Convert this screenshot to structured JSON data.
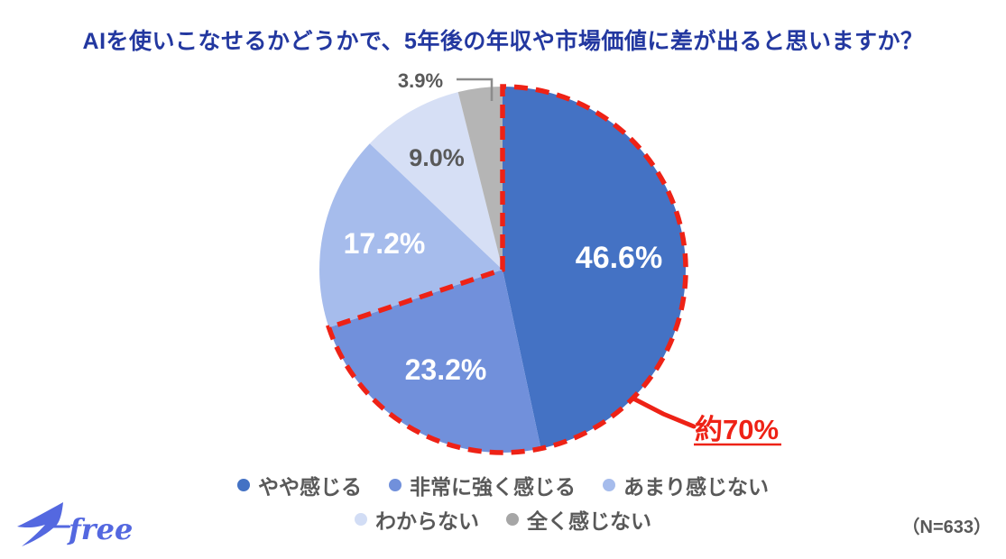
{
  "title": "AIを使いこなせるかどうかで、5年後の年収や市場価値に差が出ると思いますか？",
  "sample_size": "（N=633）",
  "logo": {
    "text": "freee",
    "icon": "swallow-icon"
  },
  "colors": {
    "title_blue": "#2338A0",
    "text_gray": "#595959",
    "annotation_red": "#EE2216",
    "leader_gray": "#8C8C8C",
    "logo_blue": "#5468E0",
    "label_white": "#FFFFFF"
  },
  "chart_data": {
    "type": "pie",
    "title": "AIを使いこなせるかどうかで、5年後の年収や市場価値に差が出ると思いますか？",
    "labels": [
      "やや感じる",
      "非常に強く感じる",
      "あまり感じない",
      "わからない",
      "全く感じない"
    ],
    "values": [
      46.6,
      23.2,
      17.2,
      9.0,
      3.9
    ],
    "value_labels": [
      "46.6%",
      "23.2%",
      "17.2%",
      "9.0%",
      "3.9%"
    ],
    "colors": [
      "#4472C4",
      "#7190DB",
      "#A6BCEC",
      "#D6DFF5",
      "#B5B5B5"
    ],
    "legend_dot_colors": [
      "#4472C4",
      "#7190DB",
      "#A6BCEC",
      "#D2DDF5",
      "#A6A6A6"
    ],
    "label_text_colors": [
      "#FFFFFF",
      "#FFFFFF",
      "#FFFFFF",
      "#595959",
      "#595959"
    ],
    "start_angle_deg": 0,
    "direction": "clockwise",
    "legend_position": "bottom",
    "legend_rows": [
      [
        0,
        1,
        2
      ],
      [
        3,
        4
      ]
    ],
    "outside_label_slice": 4,
    "annotation": {
      "text": "約70%",
      "slices": [
        0,
        1
      ],
      "color": "#EE2216",
      "style": "dashed-outline"
    },
    "sample_size": "（N=633）"
  }
}
